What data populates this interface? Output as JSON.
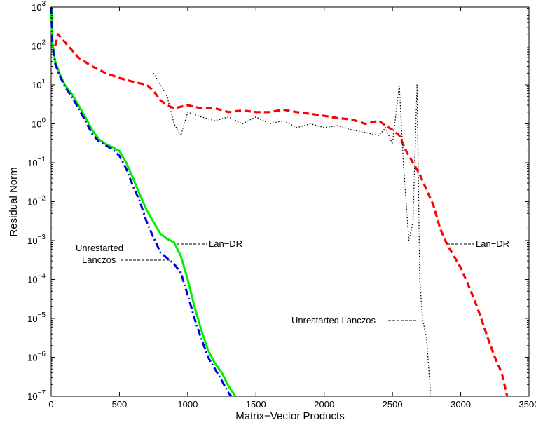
{
  "chart_data": {
    "type": "line",
    "title": "",
    "xlabel": "Matrix−Vector Products",
    "ylabel": "Residual Norm",
    "xlim": [
      0,
      3500
    ],
    "ylim_log10": [
      -7,
      3
    ],
    "y_scale": "log",
    "grid": false,
    "x_ticks": [
      "0",
      "500",
      "1000",
      "1500",
      "2000",
      "2500",
      "3000",
      "3500"
    ],
    "y_tick_exponents": [
      "3",
      "2",
      "1",
      "0",
      "−1",
      "−2",
      "−3",
      "−4",
      "−5",
      "−6",
      "−7"
    ],
    "series": [
      {
        "color": "#00ee00",
        "style": "solid",
        "points": [
          [
            0,
            1000
          ],
          [
            10,
            120
          ],
          [
            30,
            40
          ],
          [
            60,
            20
          ],
          [
            100,
            10
          ],
          [
            150,
            6
          ],
          [
            200,
            3
          ],
          [
            250,
            1.5
          ],
          [
            300,
            0.7
          ],
          [
            350,
            0.4
          ],
          [
            400,
            0.3
          ],
          [
            450,
            0.25
          ],
          [
            500,
            0.2
          ],
          [
            550,
            0.1
          ],
          [
            600,
            0.04
          ],
          [
            650,
            0.015
          ],
          [
            700,
            0.006
          ],
          [
            750,
            0.003
          ],
          [
            800,
            0.0015
          ],
          [
            850,
            0.0011
          ],
          [
            900,
            0.0009
          ],
          [
            950,
            0.0004
          ],
          [
            1000,
            0.0001
          ],
          [
            1050,
            2e-05
          ],
          [
            1100,
            5e-06
          ],
          [
            1150,
            1.5e-06
          ],
          [
            1200,
            7e-07
          ],
          [
            1250,
            4e-07
          ],
          [
            1300,
            1.8e-07
          ],
          [
            1350,
            1e-07
          ]
        ]
      },
      {
        "color": "#0000dd",
        "style": "dashdot",
        "points": [
          [
            0,
            1000
          ],
          [
            10,
            100
          ],
          [
            30,
            35
          ],
          [
            60,
            18
          ],
          [
            100,
            9
          ],
          [
            150,
            5
          ],
          [
            200,
            2.5
          ],
          [
            250,
            1.2
          ],
          [
            300,
            0.55
          ],
          [
            350,
            0.35
          ],
          [
            400,
            0.28
          ],
          [
            450,
            0.22
          ],
          [
            500,
            0.15
          ],
          [
            550,
            0.07
          ],
          [
            600,
            0.025
          ],
          [
            650,
            0.01
          ],
          [
            700,
            0.003
          ],
          [
            750,
            0.0012
          ],
          [
            800,
            0.0005
          ],
          [
            850,
            0.00035
          ],
          [
            900,
            0.00025
          ],
          [
            950,
            0.00015
          ],
          [
            1000,
            4e-05
          ],
          [
            1050,
            1e-05
          ],
          [
            1100,
            3e-06
          ],
          [
            1150,
            1e-06
          ],
          [
            1200,
            5e-07
          ],
          [
            1250,
            2.5e-07
          ],
          [
            1300,
            1.2e-07
          ],
          [
            1320,
            1e-07
          ]
        ]
      },
      {
        "color": "#ff0000",
        "style": "dashed",
        "points": [
          [
            30,
            100
          ],
          [
            50,
            200
          ],
          [
            80,
            150
          ],
          [
            150,
            80
          ],
          [
            200,
            50
          ],
          [
            300,
            30
          ],
          [
            400,
            20
          ],
          [
            500,
            15
          ],
          [
            600,
            12
          ],
          [
            700,
            10
          ],
          [
            750,
            7
          ],
          [
            800,
            4
          ],
          [
            850,
            3
          ],
          [
            900,
            2.5
          ],
          [
            1000,
            3
          ],
          [
            1100,
            2.5
          ],
          [
            1200,
            2.5
          ],
          [
            1300,
            2
          ],
          [
            1400,
            2.2
          ],
          [
            1500,
            2
          ],
          [
            1600,
            2
          ],
          [
            1700,
            2.3
          ],
          [
            1800,
            2
          ],
          [
            1900,
            1.8
          ],
          [
            2000,
            1.6
          ],
          [
            2100,
            1.4
          ],
          [
            2200,
            1.3
          ],
          [
            2300,
            1
          ],
          [
            2400,
            1.2
          ],
          [
            2450,
            0.9
          ],
          [
            2500,
            0.7
          ],
          [
            2550,
            0.5
          ],
          [
            2600,
            0.2
          ],
          [
            2650,
            0.1
          ],
          [
            2700,
            0.05
          ],
          [
            2750,
            0.02
          ],
          [
            2800,
            0.008
          ],
          [
            2850,
            0.002
          ],
          [
            2900,
            0.0008
          ],
          [
            2950,
            0.0004
          ],
          [
            3000,
            0.0002
          ],
          [
            3050,
            8e-05
          ],
          [
            3100,
            3e-05
          ],
          [
            3150,
            1e-05
          ],
          [
            3200,
            3e-06
          ],
          [
            3250,
            1e-06
          ],
          [
            3300,
            4e-07
          ],
          [
            3340,
            1e-07
          ]
        ]
      },
      {
        "color": "#000000",
        "style": "dotted",
        "points": [
          [
            750,
            20
          ],
          [
            800,
            10
          ],
          [
            850,
            5
          ],
          [
            900,
            1
          ],
          [
            950,
            0.5
          ],
          [
            1000,
            2
          ],
          [
            1100,
            1.5
          ],
          [
            1200,
            1.2
          ],
          [
            1300,
            1.5
          ],
          [
            1400,
            1
          ],
          [
            1500,
            1.5
          ],
          [
            1600,
            1
          ],
          [
            1700,
            1.2
          ],
          [
            1800,
            0.8
          ],
          [
            1900,
            1
          ],
          [
            2000,
            0.8
          ],
          [
            2100,
            0.9
          ],
          [
            2200,
            0.7
          ],
          [
            2300,
            0.6
          ],
          [
            2400,
            0.5
          ],
          [
            2450,
            0.8
          ],
          [
            2500,
            0.3
          ],
          [
            2550,
            10
          ],
          [
            2580,
            0.1
          ],
          [
            2600,
            0.01
          ],
          [
            2620,
            0.001
          ],
          [
            2650,
            0.003
          ],
          [
            2680,
            10
          ],
          [
            2700,
            0.0001
          ],
          [
            2720,
            1e-05
          ],
          [
            2750,
            3e-06
          ],
          [
            2780,
            1e-07
          ]
        ]
      }
    ],
    "annotations": {
      "landr_left": "Lan−DR",
      "unrestarted_left_line1": "Unrestarted",
      "unrestarted_left_line2": "Lanczos",
      "unrestarted_right": "Unrestarted Lanczos",
      "landr_right": "Lan−DR"
    }
  }
}
